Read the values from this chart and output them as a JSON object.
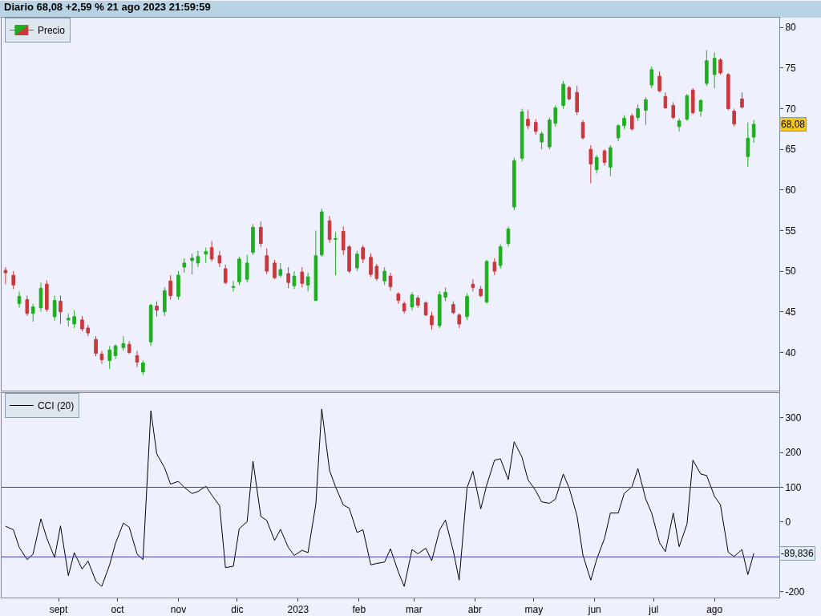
{
  "chart_data": [
    {
      "type": "candlestick",
      "title": "Diario 68,08 +2,59 % 21 ago 2023 21:59:59",
      "legend": "top left",
      "tick_labels": "y",
      "colors": [
        "#1fae1f",
        "#c8383c"
      ],
      "x": [
        "2022-08-05",
        "2022-08-09",
        "2022-08-12",
        "2022-08-16",
        "2022-08-19",
        "2022-08-23",
        "2022-08-26",
        "2022-08-30",
        "2022-09-02",
        "2022-09-06",
        "2022-09-09",
        "2022-09-13",
        "2022-09-16",
        "2022-09-20",
        "2022-09-23",
        "2022-09-27",
        "2022-09-30",
        "2022-10-04",
        "2022-10-07",
        "2022-10-11",
        "2022-10-14",
        "2022-10-18",
        "2022-10-21",
        "2022-10-25",
        "2022-10-28",
        "2022-11-01",
        "2022-11-04",
        "2022-11-08",
        "2022-11-11",
        "2022-11-15",
        "2022-11-18",
        "2022-11-22",
        "2022-11-25",
        "2022-11-29",
        "2022-12-02",
        "2022-12-06",
        "2022-12-09",
        "2022-12-13",
        "2022-12-16",
        "2022-12-20",
        "2022-12-23",
        "2022-12-27",
        "2022-12-30",
        "2023-01-03",
        "2023-01-06",
        "2023-01-10",
        "2023-01-13",
        "2023-01-17",
        "2023-01-20",
        "2023-01-24",
        "2023-01-27",
        "2023-01-31",
        "2023-02-03",
        "2023-02-07",
        "2023-02-10",
        "2023-02-14",
        "2023-02-17",
        "2023-02-21",
        "2023-02-24",
        "2023-02-28",
        "2023-03-03",
        "2023-03-07",
        "2023-03-10",
        "2023-03-14",
        "2023-03-17",
        "2023-03-21",
        "2023-03-24",
        "2023-03-28",
        "2023-03-31",
        "2023-04-04",
        "2023-04-07",
        "2023-04-11",
        "2023-04-14",
        "2023-04-18",
        "2023-04-21",
        "2023-04-25",
        "2023-04-28",
        "2023-05-02",
        "2023-05-05",
        "2023-05-09",
        "2023-05-12",
        "2023-05-16",
        "2023-05-19",
        "2023-05-23",
        "2023-05-26",
        "2023-05-30",
        "2023-06-02",
        "2023-06-06",
        "2023-06-09",
        "2023-06-13",
        "2023-06-16",
        "2023-06-20",
        "2023-06-23",
        "2023-06-27",
        "2023-06-30",
        "2023-07-04",
        "2023-07-07",
        "2023-07-11",
        "2023-07-14",
        "2023-07-18",
        "2023-07-21",
        "2023-07-25",
        "2023-07-28",
        "2023-08-01",
        "2023-08-04",
        "2023-08-08",
        "2023-08-11",
        "2023-08-15",
        "2023-08-18",
        "2023-08-21"
      ],
      "series": [
        {
          "name": "Precio",
          "ohlc": [
            [
              50.1,
              50.5,
              48.4,
              49.8
            ],
            [
              49.5,
              50.0,
              47.8,
              48.3
            ],
            [
              46.0,
              47.5,
              45.5,
              46.9
            ],
            [
              46.5,
              47.0,
              44.5,
              44.8
            ],
            [
              44.8,
              46.0,
              43.8,
              45.6
            ],
            [
              45.5,
              48.6,
              45.0,
              47.9
            ],
            [
              48.4,
              48.9,
              45.0,
              45.3
            ],
            [
              44.4,
              47.0,
              43.9,
              46.4
            ],
            [
              46.3,
              47.0,
              43.5,
              45.0
            ],
            [
              44.0,
              44.8,
              43.2,
              44.2
            ],
            [
              43.5,
              45.2,
              43.0,
              44.4
            ],
            [
              44.0,
              44.5,
              42.6,
              42.9
            ],
            [
              43.0,
              43.4,
              42.0,
              42.4
            ],
            [
              41.6,
              42.0,
              39.5,
              39.9
            ],
            [
              39.8,
              40.2,
              38.6,
              39.1
            ],
            [
              39.0,
              40.8,
              38.0,
              40.3
            ],
            [
              39.6,
              41.0,
              39.2,
              40.8
            ],
            [
              40.6,
              42.0,
              40.2,
              41.1
            ],
            [
              41.0,
              41.4,
              39.8,
              40.0
            ],
            [
              39.6,
              40.2,
              38.2,
              38.8
            ],
            [
              37.6,
              39.0,
              37.2,
              38.7
            ],
            [
              41.3,
              46.0,
              40.8,
              45.8
            ],
            [
              45.7,
              46.3,
              44.4,
              45.2
            ],
            [
              45.0,
              48.0,
              44.5,
              47.6
            ],
            [
              48.8,
              49.5,
              46.5,
              47.0
            ],
            [
              46.9,
              50.0,
              46.5,
              49.5
            ],
            [
              50.5,
              51.6,
              49.8,
              51.0
            ],
            [
              51.3,
              52.2,
              49.6,
              51.6
            ],
            [
              51.0,
              52.5,
              50.5,
              51.8
            ],
            [
              52.1,
              52.9,
              51.0,
              52.4
            ],
            [
              52.9,
              53.7,
              51.2,
              51.5
            ],
            [
              51.9,
              52.5,
              50.5,
              51.0
            ],
            [
              50.3,
              50.8,
              48.4,
              48.6
            ],
            [
              48.0,
              48.8,
              47.5,
              48.1
            ],
            [
              48.7,
              51.8,
              48.3,
              51.5
            ],
            [
              49.0,
              52.0,
              48.6,
              51.0
            ],
            [
              52.3,
              55.8,
              52.0,
              55.4
            ],
            [
              55.4,
              56.1,
              53.0,
              53.4
            ],
            [
              51.9,
              52.8,
              49.6,
              50.0
            ],
            [
              51.0,
              51.4,
              49.0,
              49.2
            ],
            [
              49.5,
              51.0,
              49.2,
              50.2
            ],
            [
              49.7,
              50.5,
              47.9,
              48.6
            ],
            [
              48.2,
              50.0,
              47.8,
              49.4
            ],
            [
              49.9,
              50.5,
              48.0,
              48.5
            ],
            [
              48.3,
              49.8,
              47.5,
              49.3
            ],
            [
              46.4,
              55.0,
              46.3,
              51.9
            ],
            [
              52.0,
              57.7,
              51.8,
              57.3
            ],
            [
              56.2,
              56.8,
              53.5,
              53.9
            ],
            [
              53.9,
              54.8,
              49.5,
              54.0
            ],
            [
              54.9,
              55.5,
              52.0,
              52.6
            ],
            [
              53.0,
              53.2,
              49.8,
              50.0
            ],
            [
              50.4,
              52.5,
              50.0,
              52.1
            ],
            [
              52.9,
              53.2,
              51.0,
              51.5
            ],
            [
              51.7,
              52.2,
              49.3,
              49.6
            ],
            [
              50.6,
              50.9,
              48.8,
              49.1
            ],
            [
              48.8,
              50.5,
              48.3,
              50.0
            ],
            [
              49.4,
              49.8,
              47.6,
              48.1
            ],
            [
              47.2,
              47.4,
              46.0,
              46.4
            ],
            [
              46.0,
              46.3,
              44.8,
              45.1
            ],
            [
              45.6,
              47.4,
              45.2,
              47.1
            ],
            [
              46.7,
              47.0,
              45.5,
              45.8
            ],
            [
              46.1,
              46.3,
              44.5,
              44.6
            ],
            [
              44.5,
              45.0,
              42.8,
              43.4
            ],
            [
              43.3,
              47.5,
              43.0,
              47.1
            ],
            [
              46.8,
              48.0,
              46.3,
              47.4
            ],
            [
              45.9,
              46.3,
              44.7,
              44.9
            ],
            [
              44.6,
              44.8,
              43.0,
              43.5
            ],
            [
              44.4,
              47.3,
              44.0,
              46.9
            ],
            [
              48.4,
              49.0,
              47.5,
              48.0
            ],
            [
              47.8,
              48.2,
              46.8,
              47.0
            ],
            [
              46.2,
              51.4,
              46.0,
              51.2
            ],
            [
              51.1,
              51.6,
              49.5,
              50.0
            ],
            [
              50.7,
              53.3,
              50.3,
              53.0
            ],
            [
              53.4,
              55.5,
              53.0,
              55.2
            ],
            [
              57.9,
              64.0,
              57.5,
              63.6
            ],
            [
              63.9,
              70.0,
              63.5,
              69.6
            ],
            [
              68.7,
              69.8,
              67.5,
              67.9
            ],
            [
              68.3,
              68.7,
              66.8,
              67.2
            ],
            [
              65.9,
              67.2,
              65.0,
              66.9
            ],
            [
              65.3,
              68.9,
              65.0,
              68.6
            ],
            [
              68.2,
              70.4,
              67.8,
              70.1
            ],
            [
              70.4,
              73.4,
              70.0,
              73.0
            ],
            [
              72.6,
              72.8,
              71.0,
              71.2
            ],
            [
              72.0,
              72.8,
              69.2,
              69.6
            ],
            [
              68.3,
              68.6,
              66.2,
              66.4
            ],
            [
              65.0,
              65.5,
              60.8,
              63.2
            ],
            [
              62.5,
              64.3,
              62.0,
              64.0
            ],
            [
              64.8,
              65.0,
              63.0,
              63.4
            ],
            [
              62.8,
              65.5,
              61.7,
              65.2
            ],
            [
              66.4,
              68.1,
              66.0,
              67.9
            ],
            [
              67.9,
              69.2,
              67.5,
              68.8
            ],
            [
              69.1,
              69.4,
              67.3,
              67.5
            ],
            [
              68.9,
              70.5,
              68.5,
              70.0
            ],
            [
              69.8,
              71.4,
              68.0,
              71.1
            ],
            [
              72.9,
              75.2,
              72.5,
              74.8
            ],
            [
              74.0,
              74.6,
              72.0,
              72.2
            ],
            [
              71.5,
              72.0,
              70.0,
              70.1
            ],
            [
              70.4,
              70.8,
              68.7,
              68.9
            ],
            [
              67.8,
              68.8,
              67.2,
              68.5
            ],
            [
              68.7,
              71.8,
              68.5,
              71.6
            ],
            [
              72.3,
              72.5,
              69.3,
              69.5
            ],
            [
              69.7,
              71.2,
              69.0,
              71.0
            ],
            [
              73.1,
              77.2,
              72.8,
              75.9
            ],
            [
              74.2,
              76.9,
              72.5,
              76.2
            ],
            [
              76.0,
              76.2,
              74.2,
              74.4
            ],
            [
              74.2,
              74.4,
              69.8,
              70.0
            ],
            [
              69.7,
              70.0,
              67.8,
              68.1
            ],
            [
              71.2,
              72.0,
              70.0,
              70.2
            ],
            [
              64.1,
              68.3,
              62.8,
              66.36
            ],
            [
              66.5,
              68.6,
              65.8,
              68.08
            ]
          ]
        }
      ],
      "xlim": [
        "2022-08-03",
        "2023-09-03"
      ],
      "ylim": [
        35.3,
        81.2
      ],
      "yticks": [
        40,
        45,
        50,
        55,
        60,
        65,
        70,
        75,
        80
      ],
      "annotations": [
        {
          "text": "68,08",
          "y": 68.08
        }
      ]
    },
    {
      "type": "line",
      "legend": "top left",
      "x": [
        "2022-08-05",
        "2022-08-09",
        "2022-08-12",
        "2022-08-16",
        "2022-08-19",
        "2022-08-23",
        "2022-08-26",
        "2022-08-30",
        "2022-09-02",
        "2022-09-06",
        "2022-09-09",
        "2022-09-13",
        "2022-09-16",
        "2022-09-20",
        "2022-09-23",
        "2022-09-27",
        "2022-09-30",
        "2022-10-04",
        "2022-10-07",
        "2022-10-11",
        "2022-10-14",
        "2022-10-18",
        "2022-10-21",
        "2022-10-25",
        "2022-10-28",
        "2022-11-01",
        "2022-11-04",
        "2022-11-08",
        "2022-11-11",
        "2022-11-15",
        "2022-11-18",
        "2022-11-22",
        "2022-11-25",
        "2022-11-29",
        "2022-12-02",
        "2022-12-06",
        "2022-12-09",
        "2022-12-13",
        "2022-12-16",
        "2022-12-20",
        "2022-12-23",
        "2022-12-27",
        "2022-12-30",
        "2023-01-03",
        "2023-01-06",
        "2023-01-10",
        "2023-01-13",
        "2023-01-17",
        "2023-01-20",
        "2023-01-24",
        "2023-01-27",
        "2023-01-31",
        "2023-02-03",
        "2023-02-07",
        "2023-02-10",
        "2023-02-14",
        "2023-02-17",
        "2023-02-21",
        "2023-02-24",
        "2023-02-28",
        "2023-03-03",
        "2023-03-07",
        "2023-03-10",
        "2023-03-14",
        "2023-03-17",
        "2023-03-21",
        "2023-03-24",
        "2023-03-28",
        "2023-03-31",
        "2023-04-04",
        "2023-04-07",
        "2023-04-11",
        "2023-04-14",
        "2023-04-18",
        "2023-04-21",
        "2023-04-25",
        "2023-04-28",
        "2023-05-02",
        "2023-05-05",
        "2023-05-09",
        "2023-05-12",
        "2023-05-16",
        "2023-05-19",
        "2023-05-23",
        "2023-05-26",
        "2023-05-30",
        "2023-06-02",
        "2023-06-06",
        "2023-06-09",
        "2023-06-13",
        "2023-06-16",
        "2023-06-20",
        "2023-06-23",
        "2023-06-27",
        "2023-06-30",
        "2023-07-04",
        "2023-07-07",
        "2023-07-11",
        "2023-07-14",
        "2023-07-18",
        "2023-07-21",
        "2023-07-25",
        "2023-07-28",
        "2023-08-01",
        "2023-08-04",
        "2023-08-08",
        "2023-08-11",
        "2023-08-15",
        "2023-08-18",
        "2023-08-21"
      ],
      "series": [
        {
          "name": "CCI (20)",
          "color": "#000000",
          "values": [
            -12,
            -22,
            -73,
            -108,
            -92,
            9,
            -46,
            -102,
            -11,
            -154,
            -88,
            -135,
            -112,
            -170,
            -185,
            -123,
            -61,
            -3,
            -15,
            -92,
            -108,
            320,
            196,
            156,
            109,
            117,
            100,
            82,
            88,
            103,
            78,
            47,
            -131,
            -127,
            -19,
            1,
            175,
            16,
            5,
            -53,
            -21,
            -73,
            -96,
            -81,
            -88,
            51,
            325,
            148,
            102,
            49,
            40,
            -30,
            -22,
            -123,
            -119,
            -115,
            -77,
            -143,
            -185,
            -79,
            -91,
            -75,
            -111,
            -23,
            6,
            -83,
            -167,
            98,
            146,
            38,
            106,
            178,
            182,
            122,
            231,
            186,
            122,
            90,
            58,
            54,
            66,
            138,
            98,
            18,
            -95,
            -167,
            -107,
            -47,
            26,
            26,
            82,
            102,
            154,
            66,
            26,
            -59,
            -85,
            26,
            -71,
            -6,
            178,
            138,
            134,
            74,
            50,
            -87,
            -99,
            -79,
            -151,
            -89.836
          ]
        }
      ],
      "xlim": [
        "2022-08-03",
        "2023-09-03"
      ],
      "xticks": [
        {
          "value": "2022-09-01",
          "label": "sept"
        },
        {
          "value": "2022-10-01",
          "label": "oct"
        },
        {
          "value": "2022-11-01",
          "label": "nov"
        },
        {
          "value": "2022-12-01",
          "label": "dic"
        },
        {
          "value": "2023-01-01",
          "label": "2023"
        },
        {
          "value": "2023-02-01",
          "label": "feb"
        },
        {
          "value": "2023-03-01",
          "label": "mar"
        },
        {
          "value": "2023-04-01",
          "label": "abr"
        },
        {
          "value": "2023-05-01",
          "label": "may"
        },
        {
          "value": "2023-06-01",
          "label": "jun"
        },
        {
          "value": "2023-07-01",
          "label": "jul"
        },
        {
          "value": "2023-08-01",
          "label": "ago"
        }
      ],
      "ylim": [
        -217,
        371
      ],
      "yticks": [
        -200,
        0,
        100,
        200,
        300
      ],
      "ref_lines": [
        {
          "axis": "y",
          "value": 100,
          "color": "#3a3acc"
        },
        {
          "axis": "y",
          "value": -100,
          "color": "#3a3acc"
        }
      ],
      "annotations": [
        {
          "text": "-89,836",
          "y": -89.836
        }
      ]
    }
  ]
}
